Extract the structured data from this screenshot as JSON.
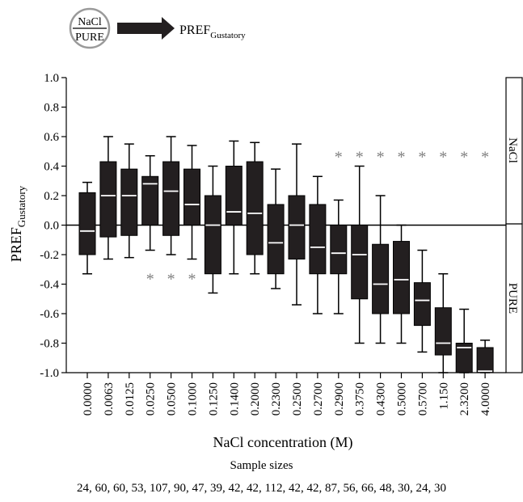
{
  "legend": {
    "circle_top": "NaCl",
    "circle_bottom": "PURE",
    "arrow_label_main": "PREF",
    "arrow_label_sub": "Gustatory"
  },
  "side_labels": {
    "top": "NaCl",
    "bottom": "PURE"
  },
  "sample_sizes": {
    "title": "Sample sizes",
    "values_text": "24, 60, 60, 53, 107, 90, 47, 39, 42, 42, 112, 42, 42, 87, 56, 66, 48, 30, 24, 30"
  },
  "chart_data": {
    "type": "boxplot",
    "xlabel": "NaCl concentration (M)",
    "ylabel_main": "PREF",
    "ylabel_sub": "Gustatory",
    "ylim": [
      -1.0,
      1.0
    ],
    "yticks": [
      "1.0",
      "0.8",
      "0.6",
      "0.4",
      "0.2",
      "0.0",
      "-0.2",
      "-0.4",
      "-0.6",
      "-0.8",
      "-1.0"
    ],
    "yticks_values": [
      1.0,
      0.8,
      0.6,
      0.4,
      0.2,
      0.0,
      -0.2,
      -0.4,
      -0.6,
      -0.8,
      -1.0
    ],
    "reference_line": 0.0,
    "box_color": "#231f20",
    "median_color": "#ffffff",
    "star_color": "#808080",
    "categories": [
      "0.0000",
      "0.0063",
      "0.0125",
      "0.0250",
      "0.0500",
      "0.1000",
      "0.1250",
      "0.1400",
      "0.2000",
      "0.2300",
      "0.2500",
      "0.2700",
      "0.2900",
      "0.3750",
      "0.4300",
      "0.5000",
      "0.5700",
      "1.150",
      "2.3200",
      "4.0000"
    ],
    "boxes": [
      {
        "whisker_low": -0.33,
        "q1": -0.2,
        "median": -0.04,
        "q3": 0.22,
        "whisker_high": 0.29
      },
      {
        "whisker_low": -0.23,
        "q1": -0.08,
        "median": 0.2,
        "q3": 0.43,
        "whisker_high": 0.6
      },
      {
        "whisker_low": -0.22,
        "q1": -0.07,
        "median": 0.2,
        "q3": 0.38,
        "whisker_high": 0.55
      },
      {
        "whisker_low": -0.17,
        "q1": 0.0,
        "median": 0.28,
        "q3": 0.33,
        "whisker_high": 0.47
      },
      {
        "whisker_low": -0.2,
        "q1": -0.07,
        "median": 0.23,
        "q3": 0.43,
        "whisker_high": 0.6
      },
      {
        "whisker_low": -0.23,
        "q1": 0.0,
        "median": 0.14,
        "q3": 0.38,
        "whisker_high": 0.54
      },
      {
        "whisker_low": -0.46,
        "q1": -0.33,
        "median": 0.0,
        "q3": 0.2,
        "whisker_high": 0.4
      },
      {
        "whisker_low": -0.33,
        "q1": 0.0,
        "median": 0.09,
        "q3": 0.4,
        "whisker_high": 0.57
      },
      {
        "whisker_low": -0.33,
        "q1": -0.2,
        "median": 0.08,
        "q3": 0.43,
        "whisker_high": 0.56
      },
      {
        "whisker_low": -0.43,
        "q1": -0.33,
        "median": -0.12,
        "q3": 0.14,
        "whisker_high": 0.38
      },
      {
        "whisker_low": -0.54,
        "q1": -0.23,
        "median": 0.0,
        "q3": 0.2,
        "whisker_high": 0.55
      },
      {
        "whisker_low": -0.6,
        "q1": -0.33,
        "median": -0.15,
        "q3": 0.14,
        "whisker_high": 0.33
      },
      {
        "whisker_low": -0.6,
        "q1": -0.33,
        "median": -0.19,
        "q3": 0.0,
        "whisker_high": 0.17
      },
      {
        "whisker_low": -0.8,
        "q1": -0.5,
        "median": -0.2,
        "q3": 0.0,
        "whisker_high": 0.4
      },
      {
        "whisker_low": -0.8,
        "q1": -0.6,
        "median": -0.4,
        "q3": -0.13,
        "whisker_high": 0.2
      },
      {
        "whisker_low": -0.8,
        "q1": -0.6,
        "median": -0.37,
        "q3": -0.11,
        "whisker_high": 0.0
      },
      {
        "whisker_low": -0.86,
        "q1": -0.68,
        "median": -0.51,
        "q3": -0.39,
        "whisker_high": -0.17
      },
      {
        "whisker_low": -1.0,
        "q1": -0.88,
        "median": -0.8,
        "q3": -0.56,
        "whisker_high": -0.33
      },
      {
        "whisker_low": -1.0,
        "q1": -1.0,
        "median": -0.83,
        "q3": -0.8,
        "whisker_high": -0.57
      },
      {
        "whisker_low": -1.0,
        "q1": -1.0,
        "median": -0.99,
        "q3": -0.83,
        "whisker_high": -0.78
      }
    ],
    "significance": [
      {
        "index": 3,
        "y": -0.33,
        "label": "*"
      },
      {
        "index": 4,
        "y": -0.33,
        "label": "*"
      },
      {
        "index": 5,
        "y": -0.33,
        "label": "*"
      },
      {
        "index": 12,
        "y": 0.5,
        "label": "*"
      },
      {
        "index": 13,
        "y": 0.5,
        "label": "*"
      },
      {
        "index": 14,
        "y": 0.5,
        "label": "*"
      },
      {
        "index": 15,
        "y": 0.5,
        "label": "*"
      },
      {
        "index": 16,
        "y": 0.5,
        "label": "*"
      },
      {
        "index": 17,
        "y": 0.5,
        "label": "*"
      },
      {
        "index": 18,
        "y": 0.5,
        "label": "*"
      },
      {
        "index": 19,
        "y": 0.5,
        "label": "*"
      }
    ]
  }
}
